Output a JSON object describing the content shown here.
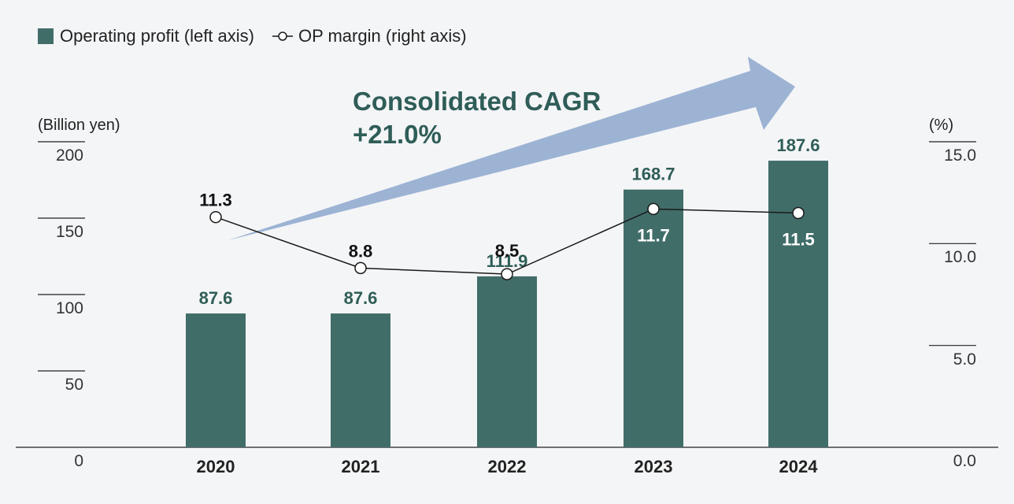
{
  "legend": {
    "bar_label": "Operating profit (left axis)",
    "line_label": "OP margin (right axis)"
  },
  "annotation": {
    "title": "Consolidated CAGR",
    "value": "+21.0%"
  },
  "colors": {
    "bar": "#416d69",
    "bar_label": "#2f5d58",
    "arrow": "#9cb3d4",
    "line": "#1a1a1a"
  },
  "chart_data": {
    "type": "bar",
    "title": "",
    "categories": [
      "2020",
      "2021",
      "2022",
      "2023",
      "2024"
    ],
    "series": [
      {
        "name": "Operating profit (left axis)",
        "type": "bar",
        "axis": "left",
        "values": [
          87.6,
          87.6,
          111.9,
          168.7,
          187.6
        ],
        "labels": [
          "87.6",
          "87.6",
          "111.9",
          "168.7",
          "187.6"
        ]
      },
      {
        "name": "OP margin (right axis)",
        "type": "line",
        "axis": "right",
        "values": [
          11.3,
          8.8,
          8.5,
          11.7,
          11.5
        ],
        "labels": [
          "11.3",
          "8.8",
          "8.5",
          "11.7",
          "11.5"
        ]
      }
    ],
    "left_axis": {
      "unit": "(Billion yen)",
      "range": [
        0,
        200
      ],
      "ticks": [
        "0",
        "50",
        "100",
        "150",
        "200"
      ]
    },
    "right_axis": {
      "unit": "(%)",
      "range": [
        0,
        15
      ],
      "ticks": [
        "0.0",
        "5.0",
        "10.0",
        "15.0"
      ]
    }
  }
}
